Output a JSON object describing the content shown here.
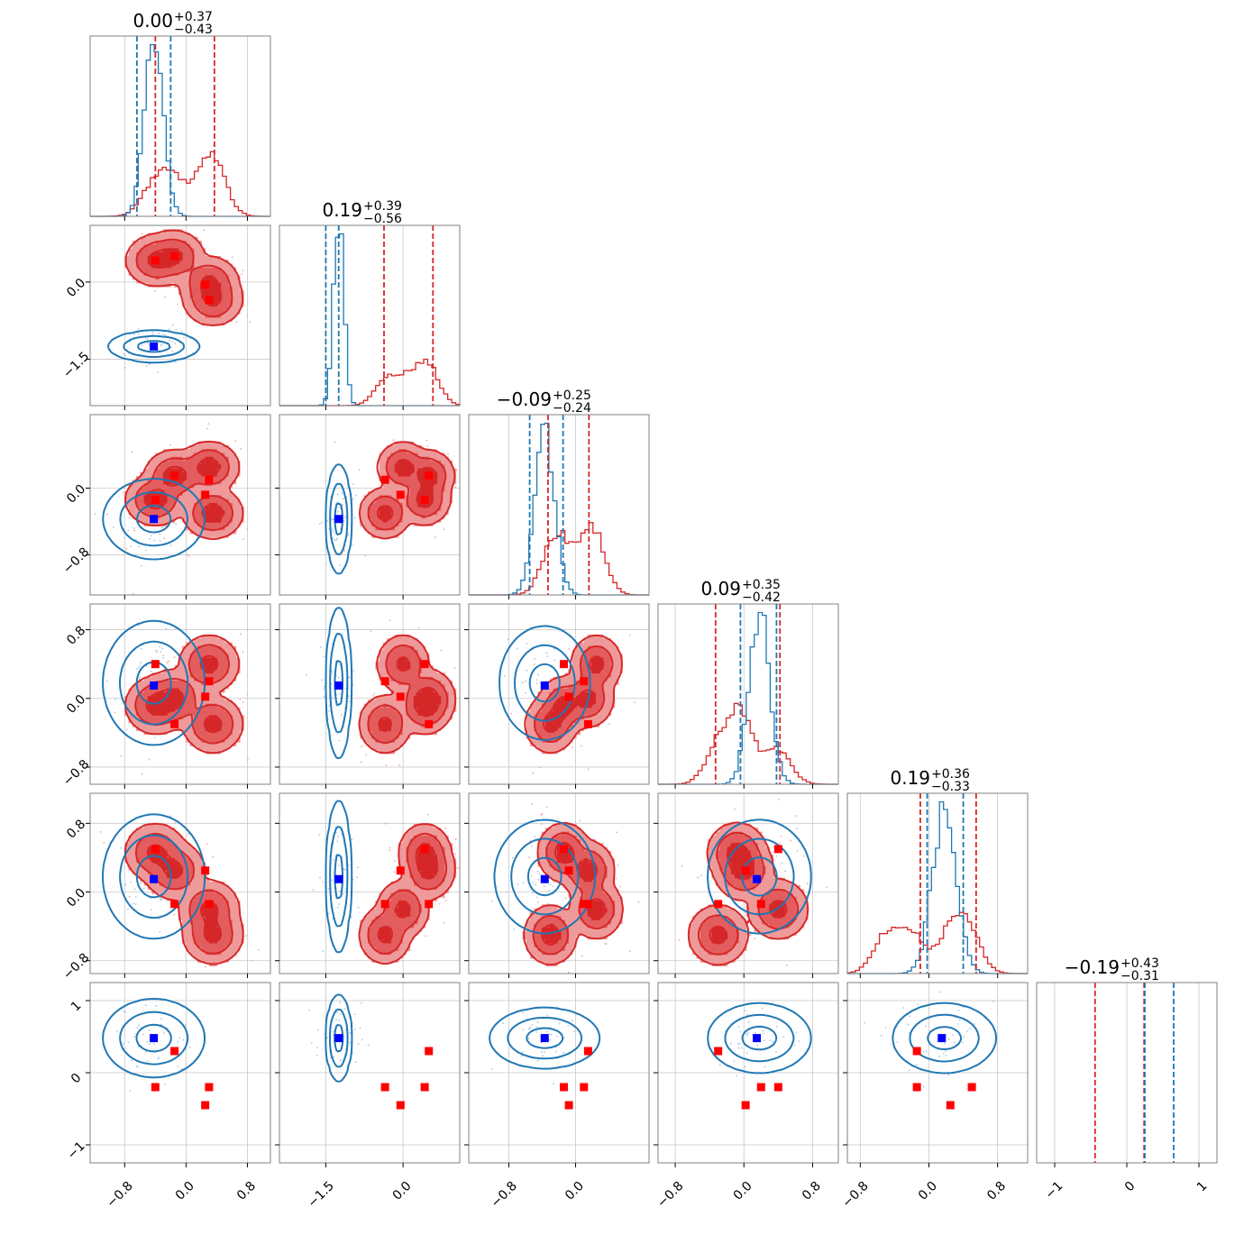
{
  "figure": {
    "colors": {
      "red": "#d62728",
      "blue": "#1f77b4",
      "red_fill_light": "#ef9a9a",
      "red_fill_mid": "#e35d5e",
      "red_fill_dark": "#d62728",
      "marker_red": "#ff0000",
      "marker_blue": "#0000ff",
      "grid": "#c8c8c8"
    }
  },
  "chart_data": {
    "type": "corner",
    "n_params": 6,
    "series": [
      {
        "name": "",
        "color": "#d62728",
        "style": "filled-contours"
      },
      {
        "name": "",
        "color": "#1f77b4",
        "style": "line-contours"
      }
    ],
    "titles": [
      {
        "median": "0.00",
        "plus": "+0.37",
        "minus": "−0.43"
      },
      {
        "median": "0.19",
        "plus": "+0.39",
        "minus": "−0.56"
      },
      {
        "median": "−0.09",
        "plus": "+0.25",
        "minus": "−0.24"
      },
      {
        "median": "0.09",
        "plus": "+0.35",
        "minus": "−0.42"
      },
      {
        "median": "0.19",
        "plus": "+0.36",
        "minus": "−0.33"
      },
      {
        "median": "−0.19",
        "plus": "+0.43",
        "minus": "−0.31"
      }
    ],
    "ranges": [
      [
        -1.25,
        1.1
      ],
      [
        -2.4,
        1.1
      ],
      [
        -1.28,
        0.88
      ],
      [
        -1.0,
        1.1
      ],
      [
        -0.95,
        1.15
      ],
      [
        -1.25,
        1.25
      ]
    ],
    "x_ticks": [
      {
        "values": [
          -0.8,
          0.0,
          0.8
        ],
        "labels": [
          "−0.8",
          "0.0",
          "0.8"
        ]
      },
      {
        "values": [
          -1.5,
          0.0
        ],
        "labels": [
          "−1.5",
          "0.0"
        ]
      },
      {
        "values": [
          -0.8,
          0.0
        ],
        "labels": [
          "−0.8",
          "0.0"
        ]
      },
      {
        "values": [
          -0.8,
          0.0,
          0.8
        ],
        "labels": [
          "−0.8",
          "0.0",
          "0.8"
        ]
      },
      {
        "values": [
          -0.8,
          0.0,
          0.8
        ],
        "labels": [
          "−0.8",
          "0.0",
          "0.8"
        ]
      },
      {
        "values": [
          -1,
          0,
          1
        ],
        "labels": [
          "−1",
          "0",
          "1"
        ]
      }
    ],
    "y_ticks": [
      null,
      {
        "values": [
          0.0,
          -1.5
        ],
        "labels": [
          "0.0",
          "−1.5"
        ]
      },
      {
        "values": [
          0.0,
          -0.8
        ],
        "labels": [
          "0.0",
          "−0.8"
        ]
      },
      {
        "values": [
          0.8,
          0.0,
          -0.8
        ],
        "labels": [
          "0.8",
          "0.0",
          "−0.8"
        ]
      },
      {
        "values": [
          0.8,
          0.0,
          -0.8
        ],
        "labels": [
          "0.8",
          "0.0",
          "−0.8"
        ]
      },
      {
        "values": [
          1,
          0,
          -1
        ],
        "labels": [
          "1",
          "0",
          "−1"
        ]
      }
    ],
    "red_modes": [
      [
        -0.4,
        0.42,
        -0.14,
        -0.08,
        0.46
      ],
      [
        -0.15,
        0.5,
        0.15,
        0.0,
        0.25
      ],
      [
        0.3,
        0.0,
        0.25,
        0.4,
        -0.2
      ],
      [
        0.35,
        -0.35,
        -0.3,
        -0.3,
        -0.5
      ]
    ],
    "red_mode_weights": [
      0.25,
      0.25,
      0.25,
      0.25
    ],
    "red_mode_sigma": [
      0.14,
      0.18,
      0.11,
      0.12,
      0.12,
      0.12
    ],
    "red_quantiles": [
      [
        -0.4,
        0.37
      ],
      [
        -0.37,
        0.58
      ],
      [
        -0.33,
        0.16
      ],
      [
        -0.33,
        0.42
      ],
      [
        -0.1,
        0.55
      ],
      [
        -0.44,
        0.24
      ]
    ],
    "blue_mean": [
      -0.42,
      -1.25,
      -0.37,
      0.18,
      0.18,
      0.48
    ],
    "blue_sigma": [
      0.12,
      0.1,
      0.12,
      0.12,
      0.14,
      0.11
    ],
    "blue_pair_sigma": {
      "1-0": [
        0.2,
        0.1
      ],
      "2-0": [
        0.22,
        0.16
      ],
      "2-1": [
        0.08,
        0.22
      ],
      "3-0": [
        0.22,
        0.24
      ],
      "3-1": [
        0.08,
        0.3
      ],
      "3-2": [
        0.18,
        0.22
      ],
      "4-0": [
        0.22,
        0.24
      ],
      "4-1": [
        0.08,
        0.3
      ],
      "4-2": [
        0.2,
        0.22
      ],
      "4-3": [
        0.2,
        0.22
      ],
      "5-0": [
        0.22,
        0.18
      ],
      "5-1": [
        0.08,
        0.2
      ],
      "5-2": [
        0.22,
        0.14
      ],
      "5-3": [
        0.2,
        0.16
      ],
      "5-4": [
        0.2,
        0.16
      ]
    },
    "blue_quantiles": [
      [
        -0.64,
        -0.2
      ],
      [
        -1.5,
        -1.25
      ],
      [
        -0.55,
        -0.15
      ],
      [
        -0.04,
        0.38
      ],
      [
        -0.02,
        0.4
      ],
      [
        0.25,
        0.65
      ]
    ],
    "blue_markers": [
      -0.42,
      -1.25,
      -0.37,
      0.15,
      0.15,
      0.48
    ],
    "red_markers": [
      [
        -0.4,
        0.42,
        -0.14,
        0.4,
        0.5,
        -0.2
      ],
      [
        -0.15,
        0.5,
        0.15,
        -0.3,
        -0.14,
        0.3
      ],
      [
        0.25,
        -0.05,
        -0.08,
        0.02,
        0.25,
        -0.45
      ],
      [
        0.3,
        -0.35,
        0.1,
        0.2,
        -0.14,
        -0.2
      ]
    ],
    "contour_levels": [
      0.393,
      0.865,
      0.989
    ],
    "grid": true
  }
}
